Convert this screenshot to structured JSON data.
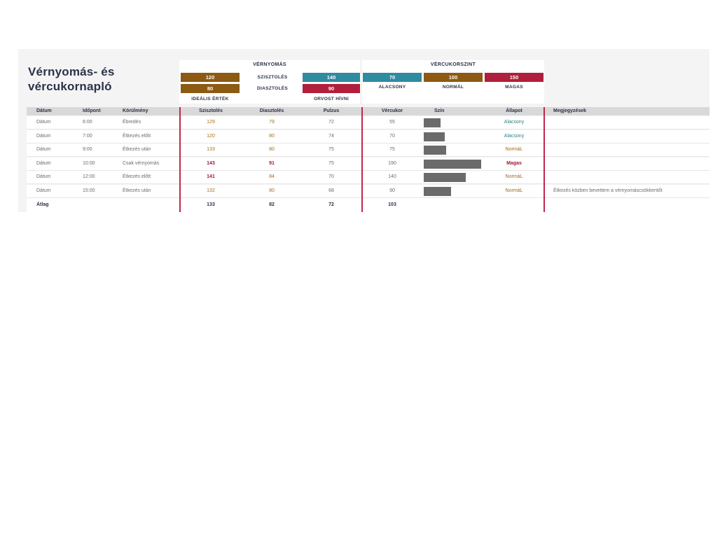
{
  "title": "Vérnyomás- és vércukornapló",
  "bp": {
    "caption": "VÉRNYOMÁS",
    "systolic_label": "SZISZTOLÉS",
    "diastolic_label": "DIASZTOLÉS",
    "ideal_systolic": "120",
    "ideal_diastolic": "80",
    "doctor_systolic": "140",
    "doctor_diastolic": "90",
    "ideal_label": "IDEÁLIS ÉRTÉK",
    "doctor_label": "ORVOST HÍVNI"
  },
  "bs": {
    "caption": "VÉRCUKORSZINT",
    "low_value": "70",
    "normal_value": "100",
    "high_value": "150",
    "low_label": "ALACSONY",
    "normal_label": "NORMÁL",
    "high_label": "MAGAS"
  },
  "headers": {
    "date": "Dátum",
    "time": "Időpont",
    "condition": "Körülmény",
    "systolic": "Szisztolés",
    "diastolic": "Diasztolés",
    "pulse": "Pulzus",
    "sugar": "Vércukor",
    "color": "Szín",
    "status": "Állapot",
    "notes": "Megjegyzések"
  },
  "rows": [
    {
      "date": "Dátum",
      "time": "6:00",
      "condition": "Ébredés",
      "systolic": "129",
      "diastolic": "79",
      "pulse": "72",
      "sugar": "55",
      "status": "Alacsony",
      "level": "low",
      "sys_style": "brown",
      "dia_style": "brown",
      "notes": ""
    },
    {
      "date": "Dátum",
      "time": "7:00",
      "condition": "Étkezés előtt",
      "systolic": "120",
      "diastolic": "80",
      "pulse": "74",
      "sugar": "70",
      "status": "Alacsony",
      "level": "low",
      "sys_style": "brown",
      "dia_style": "brown",
      "notes": ""
    },
    {
      "date": "Dátum",
      "time": "9:00",
      "condition": "Étkezés után",
      "systolic": "133",
      "diastolic": "80",
      "pulse": "75",
      "sugar": "75",
      "status": "NormáL",
      "level": "norm",
      "sys_style": "brown",
      "dia_style": "brown",
      "notes": ""
    },
    {
      "date": "Dátum",
      "time": "10:00",
      "condition": "Csak vérnyomás",
      "systolic": "143",
      "diastolic": "91",
      "pulse": "75",
      "sugar": "190",
      "status": "Magas",
      "level": "high",
      "sys_style": "red",
      "dia_style": "red",
      "notes": ""
    },
    {
      "date": "Dátum",
      "time": "12:00",
      "condition": "Étkezés előtt",
      "systolic": "141",
      "diastolic": "84",
      "pulse": "70",
      "sugar": "140",
      "status": "NormáL",
      "level": "norm",
      "sys_style": "red",
      "dia_style": "brown",
      "notes": ""
    },
    {
      "date": "Dátum",
      "time": "15:00",
      "condition": "Étkezés után",
      "systolic": "132",
      "diastolic": "80",
      "pulse": "68",
      "sugar": "90",
      "status": "NormáL",
      "level": "norm",
      "sys_style": "brown",
      "dia_style": "brown",
      "notes": "Étkezés közben bevettem a vérnyomáscsökkentőt"
    }
  ],
  "average": {
    "label": "Átlag",
    "systolic": "133",
    "diastolic": "82",
    "pulse": "72",
    "sugar": "103"
  },
  "colors": {
    "ideal": "#8c5a12",
    "systolic": "#2f8ba0",
    "doctor": "#b01f3c",
    "bar": "#6b6b6b"
  }
}
